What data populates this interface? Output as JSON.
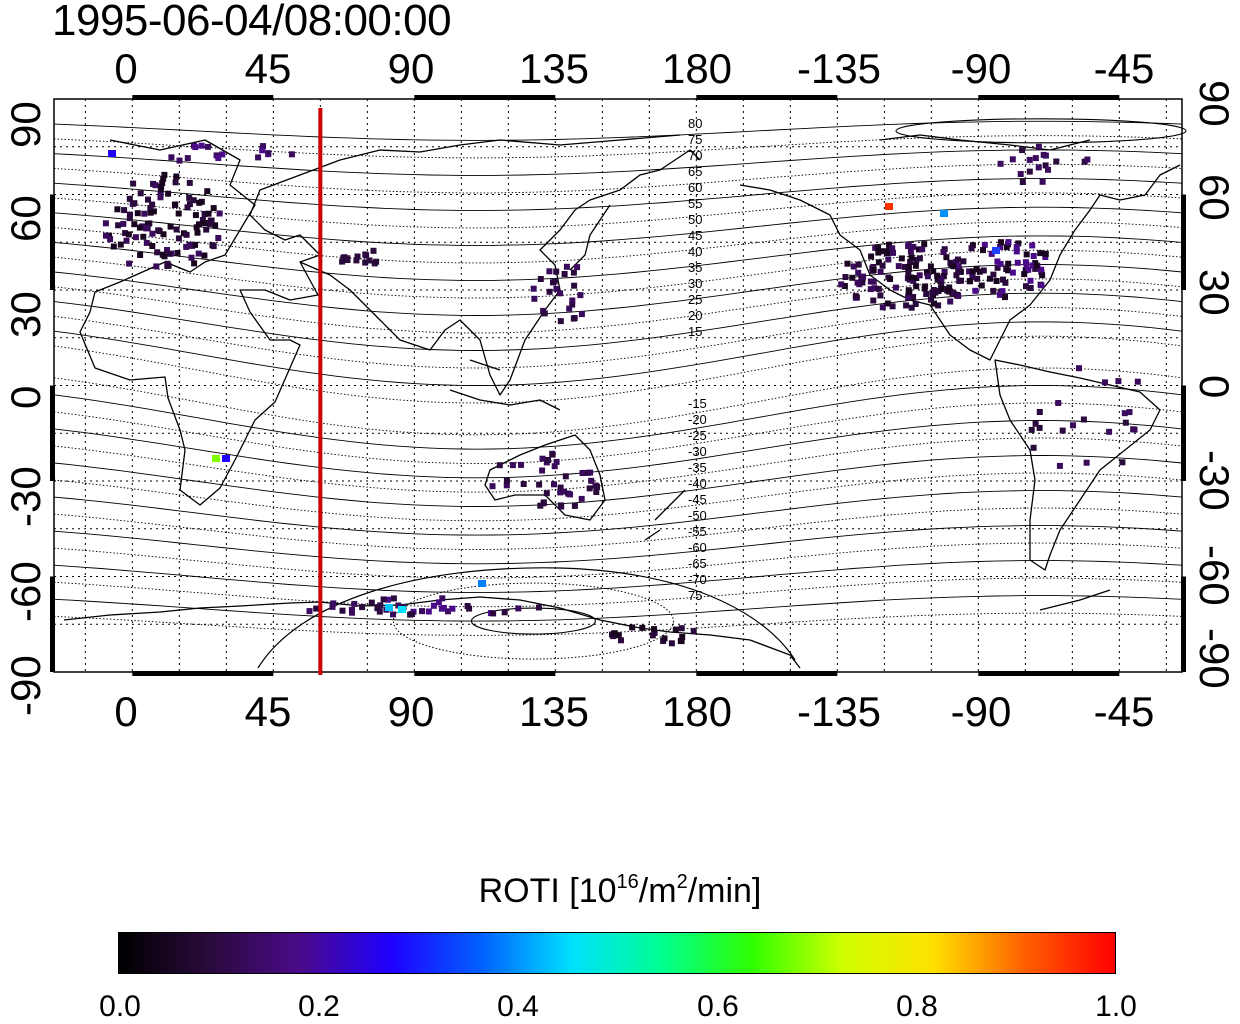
{
  "title": "1995-06-04/08:00:00",
  "map": {
    "type": "world map, equirectangular, longitude range -25 to 335",
    "lon_range": [
      -25,
      335
    ],
    "lat_range": [
      -90,
      90
    ],
    "top_ticks": [
      "0",
      "45",
      "90",
      "135",
      "180",
      "-135",
      "-90",
      "-45"
    ],
    "bottom_ticks": [
      "0",
      "45",
      "90",
      "135",
      "180",
      "-135",
      "-90",
      "-45"
    ],
    "left_ticks": [
      "90",
      "60",
      "30",
      "0",
      "-30",
      "-60",
      "-90"
    ],
    "right_ticks": [
      "90",
      "60",
      "30",
      "0",
      "-30",
      "-60",
      "-90"
    ],
    "grid": "dotted, every 15 degrees",
    "marker_longitude": 60,
    "marker_color": "#cc0000",
    "contour_labels_north": [
      "80",
      "75",
      "70",
      "65",
      "60",
      "55",
      "50",
      "45",
      "40",
      "35",
      "30",
      "25",
      "20",
      "15"
    ],
    "contour_labels_south": [
      "-15",
      "-20",
      "-25",
      "-30",
      "-35",
      "-40",
      "-45",
      "-50",
      "-55",
      "-60",
      "-65",
      "-70",
      "75"
    ]
  },
  "colorbar": {
    "label_main": "ROTI  [10",
    "label_exp1": "16",
    "label_mid": "/m",
    "label_exp2": "2",
    "label_end": "/min]",
    "ticks": [
      "0.0",
      "0.2",
      "0.4",
      "0.6",
      "0.8",
      "1.0"
    ],
    "range": [
      0.0,
      1.0
    ],
    "colors": [
      "#000000",
      "#2a0a3c",
      "#4a0a8a",
      "#2000ff",
      "#0060ff",
      "#00e0ff",
      "#00ff90",
      "#30ff00",
      "#d0ff00",
      "#ffe000",
      "#ff6000",
      "#ff0000"
    ]
  }
}
